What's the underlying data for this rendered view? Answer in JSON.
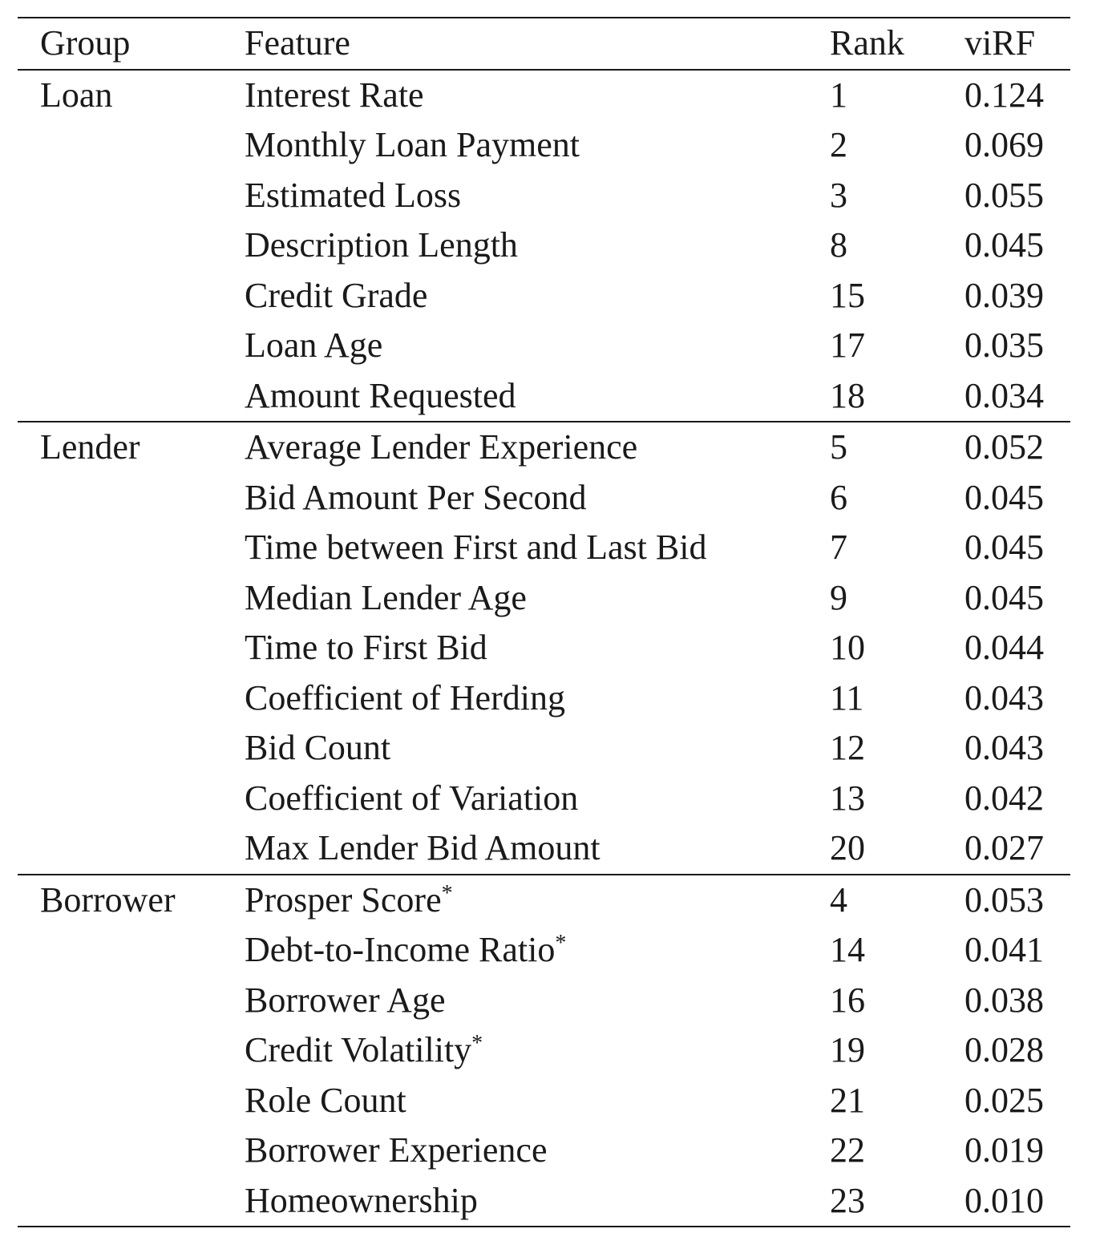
{
  "table": {
    "headers": {
      "group": "Group",
      "feature": "Feature",
      "rank": "Rank",
      "virf": "viRF"
    },
    "groups": [
      {
        "name": "Loan",
        "rows": [
          {
            "feature": "Interest Rate",
            "star": "",
            "rank": "1",
            "virf": "0.124"
          },
          {
            "feature": "Monthly Loan Payment",
            "star": "",
            "rank": "2",
            "virf": "0.069"
          },
          {
            "feature": "Estimated Loss",
            "star": "",
            "rank": "3",
            "virf": "0.055"
          },
          {
            "feature": "Description Length",
            "star": "",
            "rank": "8",
            "virf": "0.045"
          },
          {
            "feature": "Credit Grade",
            "star": "",
            "rank": "15",
            "virf": "0.039"
          },
          {
            "feature": "Loan Age",
            "star": "",
            "rank": "17",
            "virf": "0.035"
          },
          {
            "feature": "Amount Requested",
            "star": "",
            "rank": "18",
            "virf": "0.034"
          }
        ]
      },
      {
        "name": "Lender",
        "rows": [
          {
            "feature": "Average Lender Experience",
            "star": "",
            "rank": "5",
            "virf": "0.052"
          },
          {
            "feature": "Bid Amount Per Second",
            "star": "",
            "rank": "6",
            "virf": "0.045"
          },
          {
            "feature": "Time between First and Last Bid",
            "star": "",
            "rank": "7",
            "virf": "0.045"
          },
          {
            "feature": "Median Lender Age",
            "star": "",
            "rank": "9",
            "virf": "0.045"
          },
          {
            "feature": "Time to First Bid",
            "star": "",
            "rank": "10",
            "virf": "0.044"
          },
          {
            "feature": "Coefficient of Herding",
            "star": "",
            "rank": "11",
            "virf": "0.043"
          },
          {
            "feature": "Bid Count",
            "star": "",
            "rank": "12",
            "virf": "0.043"
          },
          {
            "feature": "Coefficient of Variation",
            "star": "",
            "rank": "13",
            "virf": "0.042"
          },
          {
            "feature": "Max Lender Bid Amount",
            "star": "",
            "rank": "20",
            "virf": "0.027"
          }
        ]
      },
      {
        "name": "Borrower",
        "rows": [
          {
            "feature": "Prosper Score",
            "star": "*",
            "rank": "4",
            "virf": "0.053"
          },
          {
            "feature": "Debt-to-Income Ratio",
            "star": "*",
            "rank": "14",
            "virf": "0.041"
          },
          {
            "feature": "Borrower Age",
            "star": "",
            "rank": "16",
            "virf": "0.038"
          },
          {
            "feature": "Credit Volatility",
            "star": "*",
            "rank": "19",
            "virf": "0.028"
          },
          {
            "feature": "Role Count",
            "star": "",
            "rank": "21",
            "virf": "0.025"
          },
          {
            "feature": "Borrower Experience",
            "star": "",
            "rank": "22",
            "virf": "0.019"
          },
          {
            "feature": "Homeownership",
            "star": "",
            "rank": "23",
            "virf": "0.010"
          }
        ]
      }
    ]
  }
}
